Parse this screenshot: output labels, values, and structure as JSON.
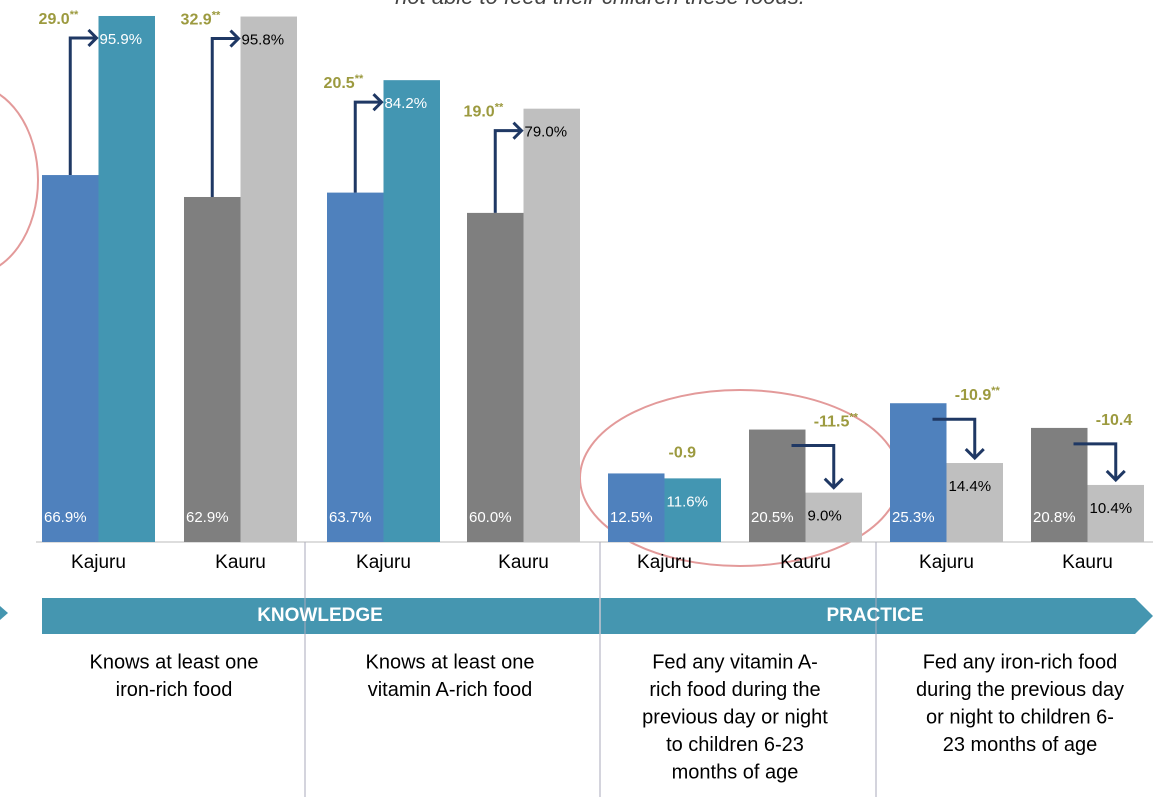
{
  "chart_data": {
    "type": "bar",
    "title": "not able to feed their children these foods.",
    "ylim": [
      0,
      100
    ],
    "categories": [
      "Kajuru",
      "Kauru",
      "Kajuru",
      "Kauru",
      "Kajuru",
      "Kauru",
      "Kajuru",
      "Kauru"
    ],
    "series": [
      {
        "values": [
          66.9,
          62.9,
          63.7,
          60.0,
          12.5,
          20.5,
          25.3,
          20.8
        ],
        "value_labels": [
          "66.9%",
          "62.9%",
          "63.7%",
          "60.0%",
          "12.5%",
          "20.5%",
          "25.3%",
          "20.8%"
        ],
        "colors": [
          "#4f81bd",
          "#7f7f7f",
          "#4f81bd",
          "#7f7f7f",
          "#4f81bd",
          "#7f7f7f",
          "#4f81bd",
          "#7f7f7f"
        ]
      },
      {
        "values": [
          95.9,
          95.8,
          84.2,
          79.0,
          11.6,
          9.0,
          14.4,
          10.4
        ],
        "value_labels": [
          "95.9%",
          "95.8%",
          "84.2%",
          "79.0%",
          "11.6%",
          "9.0%",
          "14.4%",
          "10.4%"
        ],
        "colors": [
          "#4396b2",
          "#bfbfbf",
          "#4396b2",
          "#bfbfbf",
          "#4396b2",
          "#bfbfbf",
          "#bfbfbf",
          "#bfbfbf"
        ]
      }
    ],
    "change": {
      "values": [
        29.0,
        32.9,
        20.5,
        19.0,
        -0.9,
        -11.5,
        -10.9,
        -10.4
      ],
      "labels": [
        "29.0",
        "32.9",
        "20.5",
        "19.0",
        "-0.9",
        "-11.5",
        "-10.9",
        "-10.4"
      ],
      "significance": [
        "**",
        "**",
        "**",
        "**",
        null,
        "**",
        "**",
        null
      ],
      "color": "#9c9a3f"
    },
    "sections": [
      "KNOWLEDGE",
      "PRACTICE"
    ],
    "indicators": [
      [
        "Knows at least one",
        "iron-rich food"
      ],
      [
        "Knows at least one",
        "vitamin A-rich food"
      ],
      [
        "Fed any vitamin A-",
        "rich food during the",
        "previous day or night",
        "to children 6-23",
        "months of age"
      ],
      [
        "Fed any iron-rich food",
        "during the previous day",
        "or night to children 6-",
        "23 months of age"
      ]
    ]
  }
}
